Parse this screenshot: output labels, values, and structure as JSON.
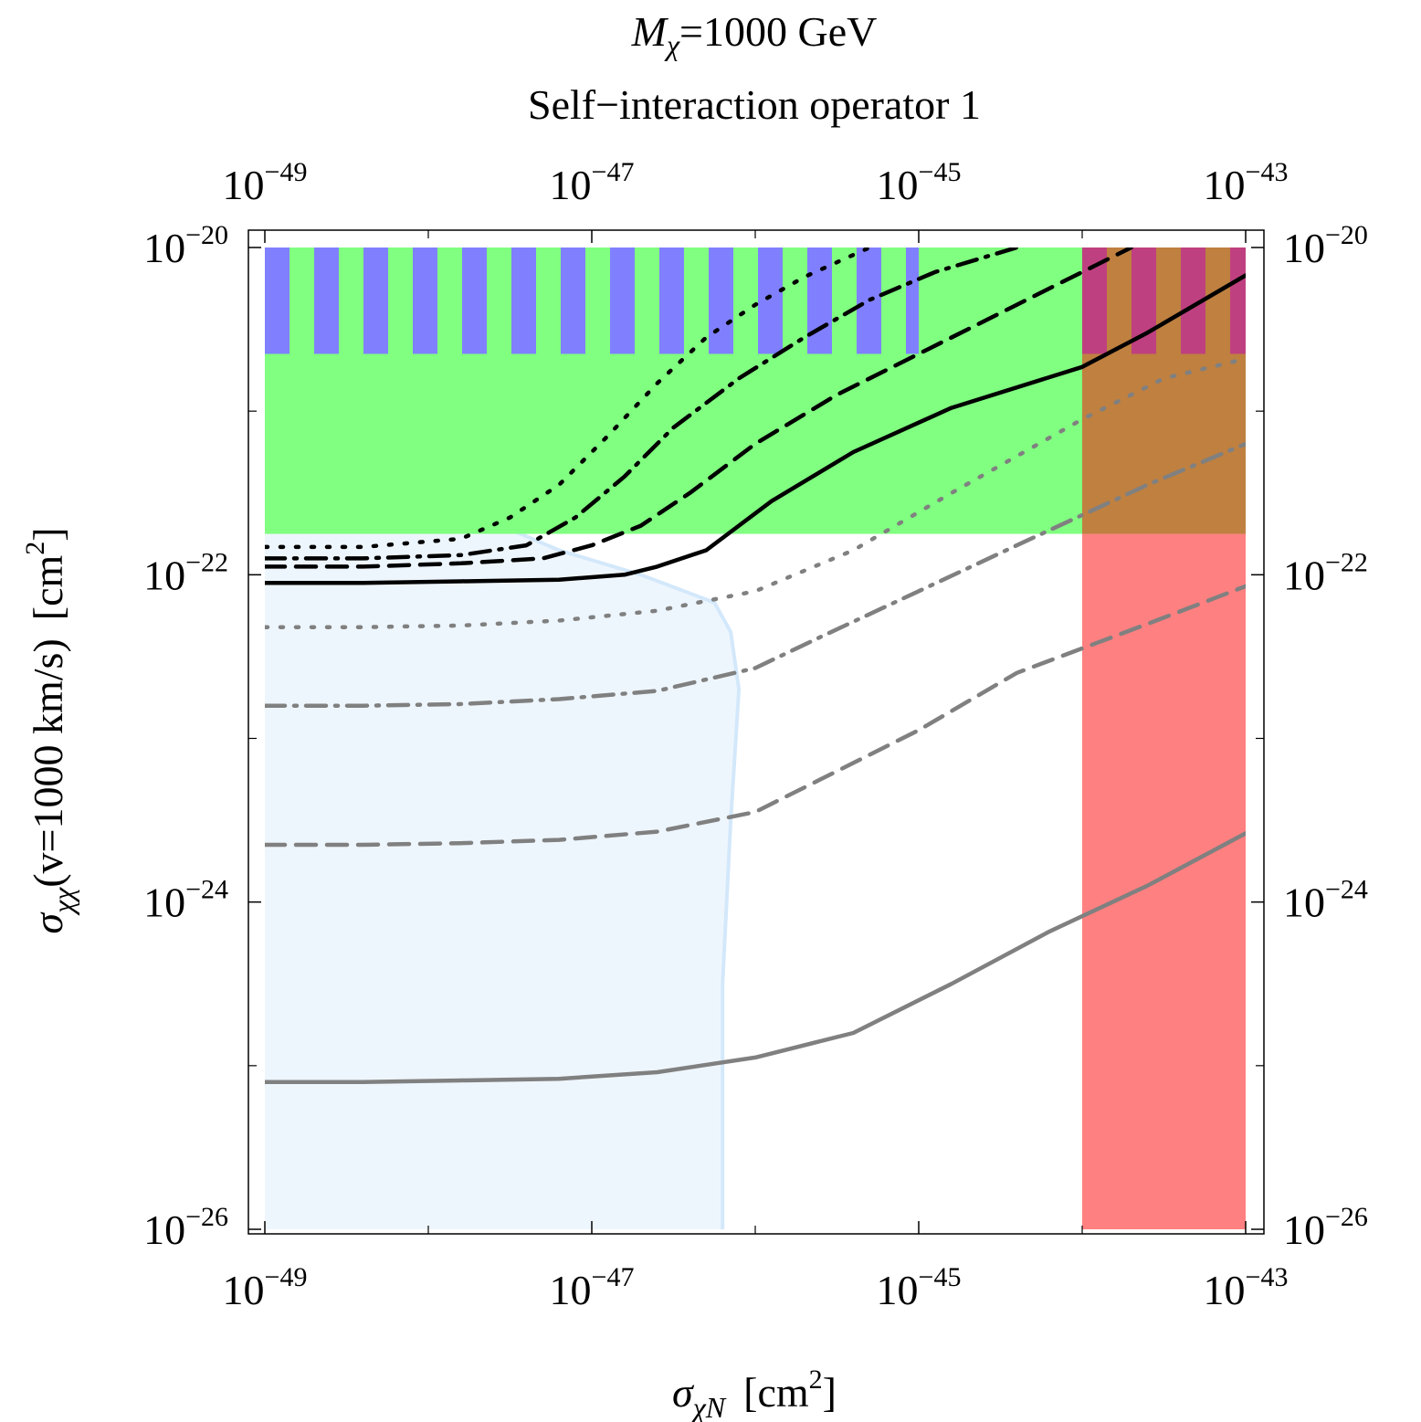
{
  "chart_data": {
    "type": "line",
    "title": {
      "line1_symbol": "M",
      "line1_sub": "χ",
      "line1_rest": "=1000 GeV",
      "line2": "Self−interaction operator 1"
    },
    "xlabel": {
      "symbol": "σ",
      "sub": "χN",
      "unit_pre": "[cm",
      "unit_sup": "2",
      "unit_post": "]"
    },
    "ylabel": {
      "symbol": "σ",
      "sub": "χχ",
      "text": "(v=1000 km/s)",
      "unit_pre": "[cm",
      "unit_sup": "2",
      "unit_post": "]"
    },
    "x_scale": "log10",
    "y_scale": "log10",
    "xlim_log10": [
      -49,
      -43
    ],
    "ylim_log10": [
      -26,
      -20
    ],
    "x_ticks": [
      {
        "base": "10",
        "exp": "−49",
        "value": -49
      },
      {
        "base": "10",
        "exp": "−47",
        "value": -47
      },
      {
        "base": "10",
        "exp": "−45",
        "value": -45
      },
      {
        "base": "10",
        "exp": "−43",
        "value": -43
      }
    ],
    "y_ticks": [
      {
        "base": "10",
        "exp": "−20",
        "value": -20
      },
      {
        "base": "10",
        "exp": "−22",
        "value": -22
      },
      {
        "base": "10",
        "exp": "−24",
        "value": -24
      },
      {
        "base": "10",
        "exp": "−26",
        "value": -26
      }
    ],
    "regions": [
      {
        "name": "light-blue-excluded",
        "color": "#eef6fd",
        "edge_color": "#d3e8fa",
        "x_from": -49,
        "boundary": [
          [
            -49,
            -21.5
          ],
          [
            -48.2,
            -21.55
          ],
          [
            -47.6,
            -21.68
          ],
          [
            -47.2,
            -21.85
          ],
          [
            -46.7,
            -22.0
          ],
          [
            -46.25,
            -22.17
          ],
          [
            -46.15,
            -22.35
          ],
          [
            -46.1,
            -22.7
          ],
          [
            -46.15,
            -23.5
          ],
          [
            -46.2,
            -24.5
          ],
          [
            -46.2,
            -26.0
          ]
        ]
      },
      {
        "name": "green-band",
        "color": "#80ff80",
        "y_from": -21.75,
        "y_to": -20.0,
        "x_from": -49,
        "x_to": -43
      },
      {
        "name": "blue-stripes",
        "color": "#8080ff",
        "y_from": -20.65,
        "y_to": -20.0,
        "x_from": -49,
        "x_to": -45.0,
        "stripe_count": 16
      },
      {
        "name": "red-region",
        "color": "#ff8080",
        "x_from": -44.0,
        "x_to": -43.0,
        "y_from": -26.0,
        "y_to": -21.75
      },
      {
        "name": "brown-overlap",
        "color": "#bf8040",
        "x_from": -44.0,
        "x_to": -43.0,
        "y_from": -21.75,
        "y_to": -20.0
      },
      {
        "name": "magenta-stripes",
        "color": "#bf4080",
        "y_from": -20.65,
        "y_to": -20.0,
        "x_from": -44.0,
        "x_to": -43.0,
        "stripe_count": 4
      }
    ],
    "series": [
      {
        "name": "black-dotted",
        "color": "#000000",
        "dash": "dotted",
        "points": [
          [
            -49,
            -21.83
          ],
          [
            -48.4,
            -21.83
          ],
          [
            -47.8,
            -21.78
          ],
          [
            -47.5,
            -21.65
          ],
          [
            -47.2,
            -21.45
          ],
          [
            -46.9,
            -21.15
          ],
          [
            -46.6,
            -20.83
          ],
          [
            -46.3,
            -20.55
          ],
          [
            -46.0,
            -20.35
          ],
          [
            -45.7,
            -20.18
          ],
          [
            -45.3,
            -20.0
          ]
        ]
      },
      {
        "name": "black-dashdot",
        "color": "#000000",
        "dash": "dashdot",
        "points": [
          [
            -49,
            -21.9
          ],
          [
            -48.4,
            -21.9
          ],
          [
            -47.8,
            -21.88
          ],
          [
            -47.4,
            -21.82
          ],
          [
            -47.1,
            -21.65
          ],
          [
            -46.8,
            -21.4
          ],
          [
            -46.5,
            -21.1
          ],
          [
            -46.1,
            -20.8
          ],
          [
            -45.7,
            -20.55
          ],
          [
            -45.3,
            -20.32
          ],
          [
            -44.9,
            -20.15
          ],
          [
            -44.4,
            -20.0
          ]
        ]
      },
      {
        "name": "black-dashed",
        "color": "#000000",
        "dash": "dashed",
        "points": [
          [
            -49,
            -21.95
          ],
          [
            -48.4,
            -21.95
          ],
          [
            -47.8,
            -21.93
          ],
          [
            -47.3,
            -21.9
          ],
          [
            -47.0,
            -21.82
          ],
          [
            -46.7,
            -21.7
          ],
          [
            -46.4,
            -21.5
          ],
          [
            -46.0,
            -21.2
          ],
          [
            -45.5,
            -20.9
          ],
          [
            -45.0,
            -20.65
          ],
          [
            -44.4,
            -20.35
          ],
          [
            -43.7,
            -20.0
          ]
        ]
      },
      {
        "name": "black-solid",
        "color": "#000000",
        "dash": "solid",
        "points": [
          [
            -49,
            -22.05
          ],
          [
            -48.4,
            -22.05
          ],
          [
            -47.8,
            -22.04
          ],
          [
            -47.2,
            -22.03
          ],
          [
            -46.8,
            -22.0
          ],
          [
            -46.6,
            -21.95
          ],
          [
            -46.3,
            -21.85
          ],
          [
            -45.9,
            -21.55
          ],
          [
            -45.4,
            -21.25
          ],
          [
            -44.8,
            -20.98
          ],
          [
            -44.0,
            -20.73
          ],
          [
            -43.6,
            -20.52
          ],
          [
            -43.0,
            -20.17
          ]
        ]
      },
      {
        "name": "gray-dotted",
        "color": "#808080",
        "dash": "dotted",
        "points": [
          [
            -49,
            -22.32
          ],
          [
            -48.4,
            -22.32
          ],
          [
            -47.8,
            -22.31
          ],
          [
            -47.2,
            -22.28
          ],
          [
            -46.6,
            -22.22
          ],
          [
            -46.0,
            -22.1
          ],
          [
            -45.4,
            -21.85
          ],
          [
            -44.8,
            -21.5
          ],
          [
            -44.0,
            -21.05
          ],
          [
            -43.5,
            -20.8
          ],
          [
            -43.0,
            -20.68
          ]
        ]
      },
      {
        "name": "gray-dashdot",
        "color": "#808080",
        "dash": "dashdot",
        "points": [
          [
            -49,
            -22.8
          ],
          [
            -48.4,
            -22.8
          ],
          [
            -47.8,
            -22.79
          ],
          [
            -47.2,
            -22.76
          ],
          [
            -46.6,
            -22.71
          ],
          [
            -46.0,
            -22.57
          ],
          [
            -45.6,
            -22.38
          ],
          [
            -45.0,
            -22.1
          ],
          [
            -44.4,
            -21.82
          ],
          [
            -43.6,
            -21.45
          ],
          [
            -43.0,
            -21.2
          ]
        ]
      },
      {
        "name": "gray-dashed",
        "color": "#808080",
        "dash": "dashed",
        "points": [
          [
            -49,
            -23.65
          ],
          [
            -48.4,
            -23.65
          ],
          [
            -47.8,
            -23.64
          ],
          [
            -47.2,
            -23.62
          ],
          [
            -46.6,
            -23.57
          ],
          [
            -46.0,
            -23.45
          ],
          [
            -45.6,
            -23.25
          ],
          [
            -45.0,
            -22.95
          ],
          [
            -44.4,
            -22.6
          ],
          [
            -43.6,
            -22.3
          ],
          [
            -43.0,
            -22.07
          ]
        ]
      },
      {
        "name": "gray-solid",
        "color": "#808080",
        "dash": "solid",
        "points": [
          [
            -49,
            -25.1
          ],
          [
            -48.4,
            -25.1
          ],
          [
            -47.8,
            -25.09
          ],
          [
            -47.2,
            -25.08
          ],
          [
            -46.6,
            -25.04
          ],
          [
            -46.0,
            -24.95
          ],
          [
            -45.4,
            -24.8
          ],
          [
            -44.8,
            -24.5
          ],
          [
            -44.2,
            -24.18
          ],
          [
            -43.6,
            -23.9
          ],
          [
            -43.0,
            -23.58
          ]
        ]
      }
    ]
  }
}
